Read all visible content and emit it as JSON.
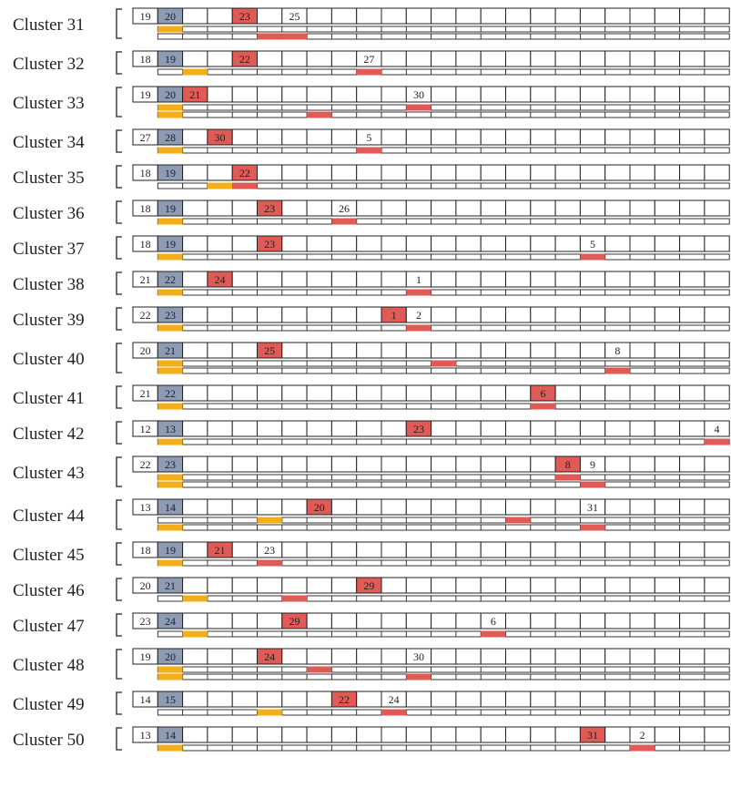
{
  "colors": {
    "grey": "#8d9bb4",
    "red": "#e05a56",
    "orange": "#f4ae1a",
    "border": "#222222",
    "background": "#ffffff"
  },
  "clusters": [
    {
      "label": "Cluster 31",
      "grey": 1,
      "cells": [
        {
          "c": 0,
          "t": "19"
        },
        {
          "c": 1,
          "t": "20",
          "k": "grey"
        },
        {
          "c": 4,
          "t": "23",
          "k": "red"
        },
        {
          "c": 6,
          "t": "25"
        }
      ],
      "bars": [
        [
          {
            "c": 1,
            "k": "orange"
          }
        ],
        [
          {
            "c": 5,
            "k": "red"
          },
          {
            "c": 6,
            "k": "red"
          }
        ]
      ]
    },
    {
      "label": "Cluster 32",
      "grey": 1,
      "cells": [
        {
          "c": 0,
          "t": "18"
        },
        {
          "c": 1,
          "t": "19",
          "k": "grey"
        },
        {
          "c": 4,
          "t": "22",
          "k": "red"
        },
        {
          "c": 9,
          "t": "27"
        }
      ],
      "bars": [
        [
          {
            "c": 2,
            "k": "orange"
          },
          {
            "c": 9,
            "k": "red"
          }
        ]
      ]
    },
    {
      "label": "Cluster 33",
      "grey": 1,
      "cells": [
        {
          "c": 0,
          "t": "19"
        },
        {
          "c": 1,
          "t": "20",
          "k": "grey"
        },
        {
          "c": 2,
          "t": "21",
          "k": "red"
        },
        {
          "c": 11,
          "t": "30"
        }
      ],
      "bars": [
        [
          {
            "c": 1,
            "k": "orange"
          },
          {
            "c": 11,
            "k": "red"
          }
        ],
        [
          {
            "c": 1,
            "k": "orange"
          },
          {
            "c": 7,
            "k": "red"
          }
        ]
      ]
    },
    {
      "label": "Cluster 34",
      "grey": 1,
      "cells": [
        {
          "c": 0,
          "t": "27"
        },
        {
          "c": 1,
          "t": "28",
          "k": "grey"
        },
        {
          "c": 3,
          "t": "30",
          "k": "red"
        },
        {
          "c": 9,
          "t": "5"
        }
      ],
      "bars": [
        [
          {
            "c": 1,
            "k": "orange"
          },
          {
            "c": 9,
            "k": "red"
          }
        ]
      ]
    },
    {
      "label": "Cluster 35",
      "grey": 1,
      "cells": [
        {
          "c": 0,
          "t": "18"
        },
        {
          "c": 1,
          "t": "19",
          "k": "grey"
        },
        {
          "c": 4,
          "t": "22",
          "k": "red"
        }
      ],
      "bars": [
        [
          {
            "c": 3,
            "k": "orange"
          },
          {
            "c": 4,
            "k": "red"
          }
        ]
      ]
    },
    {
      "label": "Cluster 36",
      "grey": 1,
      "cells": [
        {
          "c": 0,
          "t": "18"
        },
        {
          "c": 1,
          "t": "19",
          "k": "grey"
        },
        {
          "c": 5,
          "t": "23",
          "k": "red"
        },
        {
          "c": 8,
          "t": "26"
        }
      ],
      "bars": [
        [
          {
            "c": 1,
            "k": "orange"
          },
          {
            "c": 8,
            "k": "red"
          }
        ]
      ]
    },
    {
      "label": "Cluster 37",
      "grey": 1,
      "cells": [
        {
          "c": 0,
          "t": "18"
        },
        {
          "c": 1,
          "t": "19",
          "k": "grey"
        },
        {
          "c": 5,
          "t": "23",
          "k": "red"
        },
        {
          "c": 18,
          "t": "5"
        }
      ],
      "bars": [
        [
          {
            "c": 1,
            "k": "orange"
          },
          {
            "c": 18,
            "k": "red"
          }
        ]
      ]
    },
    {
      "label": "Cluster 38",
      "grey": 1,
      "cells": [
        {
          "c": 0,
          "t": "21"
        },
        {
          "c": 1,
          "t": "22",
          "k": "grey"
        },
        {
          "c": 3,
          "t": "24",
          "k": "red"
        },
        {
          "c": 11,
          "t": "1"
        }
      ],
      "bars": [
        [
          {
            "c": 1,
            "k": "orange"
          },
          {
            "c": 11,
            "k": "red"
          }
        ]
      ]
    },
    {
      "label": "Cluster 39",
      "grey": 1,
      "cells": [
        {
          "c": 0,
          "t": "22"
        },
        {
          "c": 1,
          "t": "23",
          "k": "grey"
        },
        {
          "c": 10,
          "t": "1",
          "k": "red"
        },
        {
          "c": 11,
          "t": "2"
        }
      ],
      "bars": [
        [
          {
            "c": 1,
            "k": "orange"
          },
          {
            "c": 11,
            "k": "red"
          }
        ]
      ]
    },
    {
      "label": "Cluster 40",
      "grey": 1,
      "cells": [
        {
          "c": 0,
          "t": "20"
        },
        {
          "c": 1,
          "t": "21",
          "k": "grey"
        },
        {
          "c": 5,
          "t": "25",
          "k": "red"
        },
        {
          "c": 19,
          "t": "8"
        }
      ],
      "bars": [
        [
          {
            "c": 1,
            "k": "orange"
          },
          {
            "c": 12,
            "k": "red"
          }
        ],
        [
          {
            "c": 1,
            "k": "orange"
          },
          {
            "c": 19,
            "k": "red"
          }
        ]
      ]
    },
    {
      "label": "Cluster 41",
      "grey": 1,
      "cells": [
        {
          "c": 0,
          "t": "21"
        },
        {
          "c": 1,
          "t": "22",
          "k": "grey"
        },
        {
          "c": 16,
          "t": "6",
          "k": "red"
        }
      ],
      "bars": [
        [
          {
            "c": 1,
            "k": "orange"
          },
          {
            "c": 16,
            "k": "red"
          }
        ]
      ]
    },
    {
      "label": "Cluster 42",
      "grey": 1,
      "cells": [
        {
          "c": 0,
          "t": "12"
        },
        {
          "c": 1,
          "t": "13",
          "k": "grey"
        },
        {
          "c": 11,
          "t": "23",
          "k": "red"
        },
        {
          "c": 23,
          "t": "4"
        }
      ],
      "bars": [
        [
          {
            "c": 1,
            "k": "orange"
          },
          {
            "c": 23,
            "k": "red"
          }
        ]
      ]
    },
    {
      "label": "Cluster 43",
      "grey": 1,
      "cells": [
        {
          "c": 0,
          "t": "22"
        },
        {
          "c": 1,
          "t": "23",
          "k": "grey"
        },
        {
          "c": 17,
          "t": "8",
          "k": "red"
        },
        {
          "c": 18,
          "t": "9"
        }
      ],
      "bars": [
        [
          {
            "c": 1,
            "k": "orange"
          },
          {
            "c": 17,
            "k": "red"
          }
        ],
        [
          {
            "c": 1,
            "k": "orange"
          },
          {
            "c": 18,
            "k": "red"
          }
        ]
      ]
    },
    {
      "label": "Cluster 44",
      "grey": 1,
      "cells": [
        {
          "c": 0,
          "t": "13"
        },
        {
          "c": 1,
          "t": "14",
          "k": "grey"
        },
        {
          "c": 7,
          "t": "20",
          "k": "red"
        },
        {
          "c": 18,
          "t": "31"
        }
      ],
      "bars": [
        [
          {
            "c": 5,
            "k": "orange"
          },
          {
            "c": 15,
            "k": "red"
          }
        ],
        [
          {
            "c": 1,
            "k": "orange"
          },
          {
            "c": 18,
            "k": "red"
          }
        ]
      ]
    },
    {
      "label": "Cluster 45",
      "grey": 1,
      "cells": [
        {
          "c": 0,
          "t": "18"
        },
        {
          "c": 1,
          "t": "19",
          "k": "grey"
        },
        {
          "c": 3,
          "t": "21",
          "k": "red"
        },
        {
          "c": 5,
          "t": "23"
        }
      ],
      "bars": [
        [
          {
            "c": 1,
            "k": "orange"
          },
          {
            "c": 5,
            "k": "red"
          }
        ]
      ]
    },
    {
      "label": "Cluster 46",
      "grey": 1,
      "cells": [
        {
          "c": 0,
          "t": "20"
        },
        {
          "c": 1,
          "t": "21",
          "k": "grey"
        },
        {
          "c": 9,
          "t": "29",
          "k": "red"
        }
      ],
      "bars": [
        [
          {
            "c": 2,
            "k": "orange"
          },
          {
            "c": 6,
            "k": "red"
          }
        ]
      ]
    },
    {
      "label": "Cluster 47",
      "grey": 1,
      "cells": [
        {
          "c": 0,
          "t": "23"
        },
        {
          "c": 1,
          "t": "24",
          "k": "grey"
        },
        {
          "c": 6,
          "t": "29",
          "k": "red"
        },
        {
          "c": 14,
          "t": "6"
        }
      ],
      "bars": [
        [
          {
            "c": 2,
            "k": "orange"
          },
          {
            "c": 14,
            "k": "red"
          }
        ]
      ]
    },
    {
      "label": "Cluster 48",
      "grey": 1,
      "cells": [
        {
          "c": 0,
          "t": "19"
        },
        {
          "c": 1,
          "t": "20",
          "k": "grey"
        },
        {
          "c": 5,
          "t": "24",
          "k": "red"
        },
        {
          "c": 11,
          "t": "30"
        }
      ],
      "bars": [
        [
          {
            "c": 1,
            "k": "orange"
          },
          {
            "c": 7,
            "k": "red"
          }
        ],
        [
          {
            "c": 1,
            "k": "orange"
          },
          {
            "c": 11,
            "k": "red"
          }
        ]
      ]
    },
    {
      "label": "Cluster 49",
      "grey": 1,
      "cells": [
        {
          "c": 0,
          "t": "14"
        },
        {
          "c": 1,
          "t": "15",
          "k": "grey"
        },
        {
          "c": 8,
          "t": "22",
          "k": "red"
        },
        {
          "c": 10,
          "t": "24"
        }
      ],
      "bars": [
        [
          {
            "c": 5,
            "k": "orange"
          },
          {
            "c": 10,
            "k": "red"
          }
        ]
      ]
    },
    {
      "label": "Cluster 50",
      "grey": 1,
      "cells": [
        {
          "c": 0,
          "t": "13"
        },
        {
          "c": 1,
          "t": "14",
          "k": "grey"
        },
        {
          "c": 18,
          "t": "31",
          "k": "red"
        },
        {
          "c": 20,
          "t": "2"
        }
      ],
      "bars": [
        [
          {
            "c": 1,
            "k": "orange"
          },
          {
            "c": 20,
            "k": "red"
          }
        ]
      ]
    }
  ]
}
